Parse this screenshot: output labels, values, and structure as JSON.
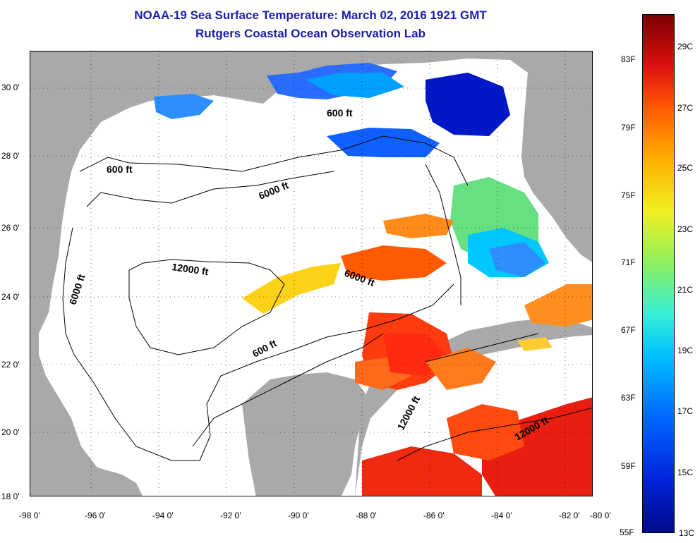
{
  "header": {
    "title_line1": "NOAA-19 Sea Surface Temperature:  March 02, 2016 1921 GMT",
    "title_line2": "Rutgers Coastal Ocean Observation Lab"
  },
  "map": {
    "longitude_labels": [
      "-98 0'",
      "-96 0'",
      "-94 0'",
      "-92 0'",
      "-90 0'",
      "-88 0'",
      "-86 0'",
      "-84 0'",
      "-82 0'",
      "-80 0'"
    ],
    "latitude_labels": [
      "30 0'",
      "28 0'",
      "26 0'",
      "24 0'",
      "22 0'",
      "20 0'",
      "18 0'"
    ],
    "contour_labels": [
      "600 ft",
      "600 ft",
      "6000 ft",
      "6000 ft",
      "6000 ft",
      "12000 ft",
      "600 ft",
      "12000 ft",
      "12000 ft"
    ],
    "colors": {
      "land": "#a9a9a9",
      "cloud": "#ffffff",
      "cold": "#0033ff",
      "cool": "#00c0ff",
      "mild": "#6fe08a",
      "warm": "#ffcc00",
      "hot": "#ff3300"
    }
  },
  "colorbar": {
    "fahrenheit_labels": [
      "83F",
      "79F",
      "75F",
      "71F",
      "67F",
      "63F",
      "59F",
      "55F"
    ],
    "celsius_labels": [
      "29C",
      "27C",
      "25C",
      "23C",
      "21C",
      "19C",
      "17C",
      "15C",
      "13C"
    ],
    "min_c": 13,
    "max_c": 30
  }
}
